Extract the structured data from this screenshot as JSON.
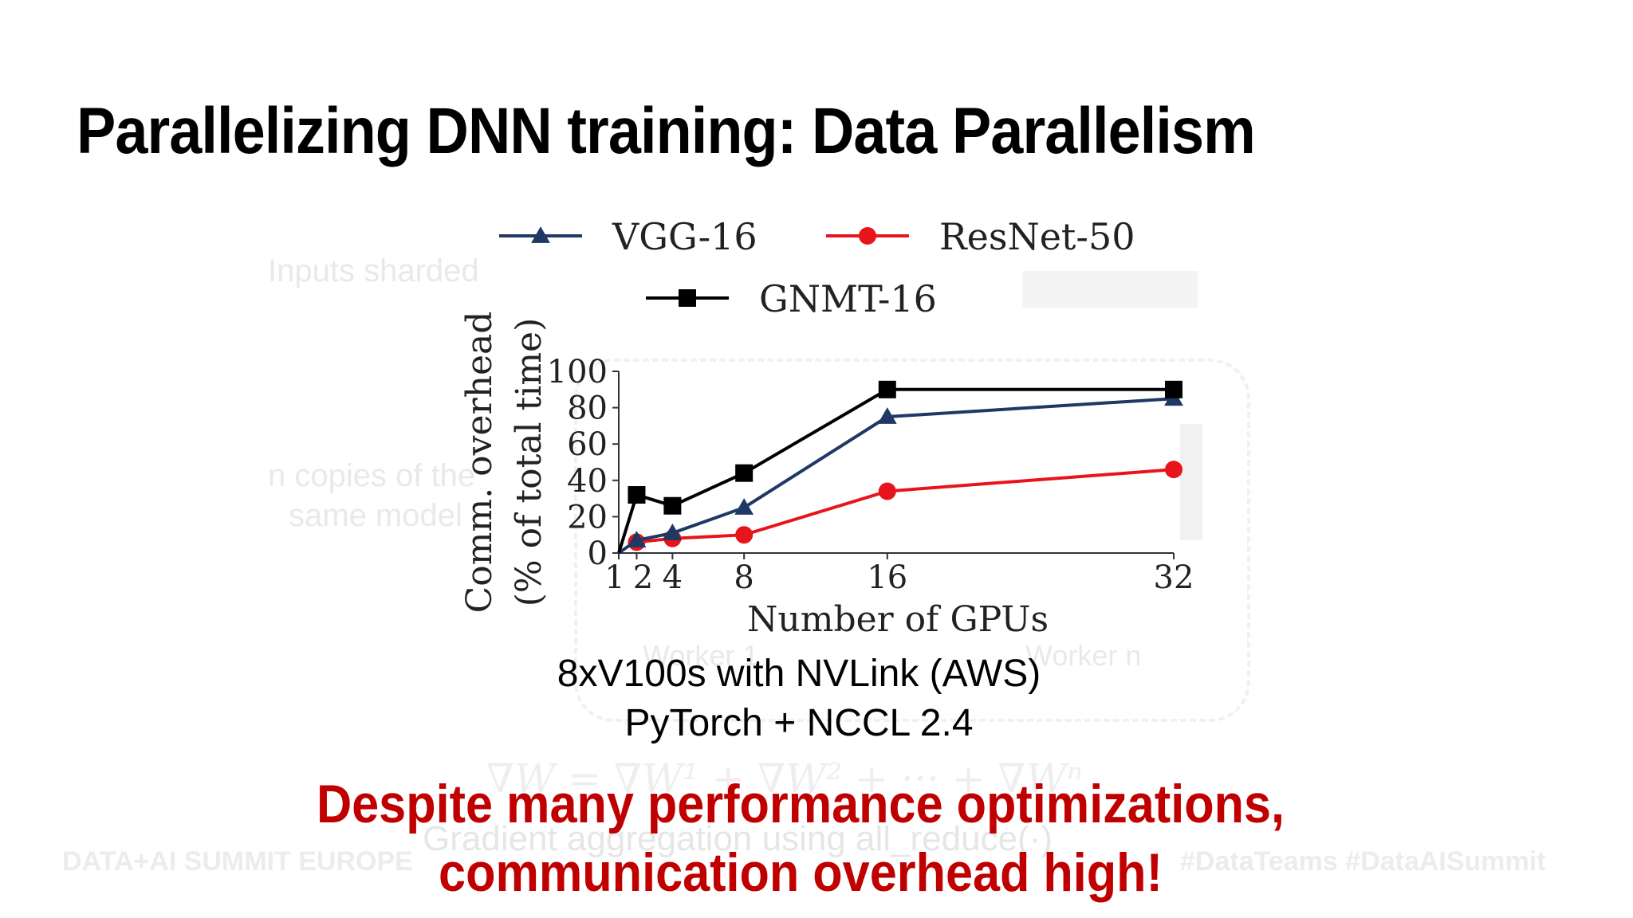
{
  "slide": {
    "title": "Parallelizing DNN training: Data Parallelism",
    "caption_line1": "8xV100s with NVLink (AWS)",
    "caption_line2": "PyTorch + NCCL 2.4",
    "callout_line1": "Despite many performance optimizations,",
    "callout_line2": "communication overhead high!",
    "callout_color": "#c00000"
  },
  "background": {
    "inputs_sharded": "Inputs sharded",
    "copies_line1": "n copies of the",
    "copies_line2": "same model",
    "worker_1": "Worker 1",
    "worker_n": "Worker n",
    "formula": "∇W = ∇W¹ + ∇W² + ··· + ∇Wⁿ",
    "gradient_note": "Gradient aggregation using all_reduce(·)",
    "footer_left": "DATA+AI SUMMIT EUROPE",
    "footer_right": "#DataTeams #DataAISummit"
  },
  "chart_data": {
    "type": "line",
    "title": "",
    "xlabel": "Number of GPUs",
    "ylabel": "Comm. overhead\n(% of total time)",
    "x_ticks": [
      "1",
      "2",
      "4",
      "8",
      "16",
      "32"
    ],
    "y_ticks": [
      "0",
      "20",
      "40",
      "60",
      "80",
      "100"
    ],
    "xlim": [
      1,
      32
    ],
    "ylim": [
      0,
      100
    ],
    "legend_position": "top",
    "series": [
      {
        "name": "VGG-16",
        "color": "#1f3864",
        "marker": "triangle",
        "x": [
          1,
          2,
          4,
          8,
          16,
          32
        ],
        "y": [
          0,
          7,
          11,
          25,
          75,
          85
        ]
      },
      {
        "name": "ResNet-50",
        "color": "#e8141c",
        "marker": "circle",
        "x": [
          2,
          4,
          8,
          16,
          32
        ],
        "y": [
          6,
          8,
          10,
          34,
          46
        ]
      },
      {
        "name": "GNMT-16",
        "color": "#000000",
        "marker": "square",
        "x": [
          1,
          2,
          4,
          8,
          16,
          32
        ],
        "y": [
          0,
          32,
          26,
          44,
          90,
          90
        ]
      }
    ]
  }
}
